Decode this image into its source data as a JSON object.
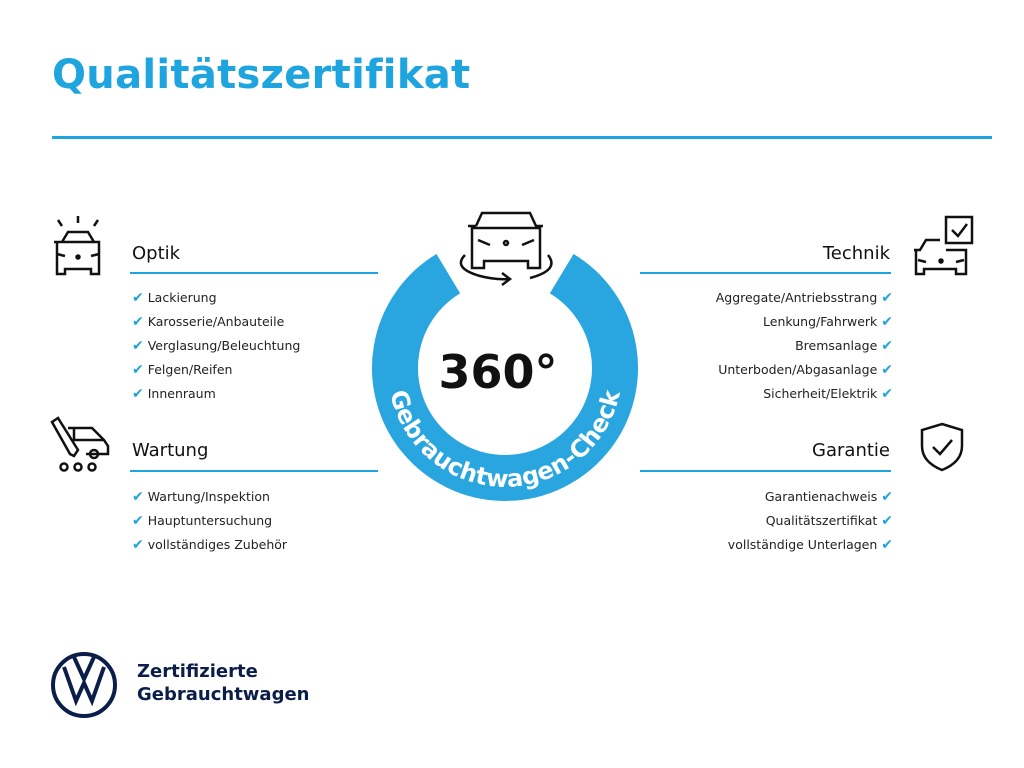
{
  "title": "Qualitätszertifikat",
  "center": {
    "number": "360°",
    "label": "Gebrauchtwagen-Check",
    "color": "#29a6e0"
  },
  "sections": {
    "optik": {
      "heading": "Optik",
      "icon": "car-lights-icon",
      "items": [
        "Lackierung",
        "Karosserie/Anbauteile",
        "Verglasung/Beleuchtung",
        "Felgen/Reifen",
        "Innenraum"
      ]
    },
    "wartung": {
      "heading": "Wartung",
      "icon": "car-service-icon",
      "items": [
        "Wartung/Inspektion",
        "Hauptuntersuchung",
        "vollständiges Zubehör"
      ]
    },
    "technik": {
      "heading": "Technik",
      "icon": "car-checklist-icon",
      "items": [
        "Aggregate/Antriebsstrang",
        "Lenkung/Fahrwerk",
        "Bremsanlage",
        "Unterboden/Abgasanlage",
        "Sicherheit/Elektrik"
      ]
    },
    "garantie": {
      "heading": "Garantie",
      "icon": "shield-check-icon",
      "items": [
        "Garantienachweis",
        "Qualitätszertifikat",
        "vollständige Unterlagen"
      ]
    }
  },
  "check_mark": "✔",
  "brand": {
    "line1": "Zertifizierte",
    "line2": "Gebrauchtwagen",
    "logo": "vw-logo"
  },
  "colors": {
    "accent": "#1ea4de",
    "logo": "#0b1e4a"
  }
}
